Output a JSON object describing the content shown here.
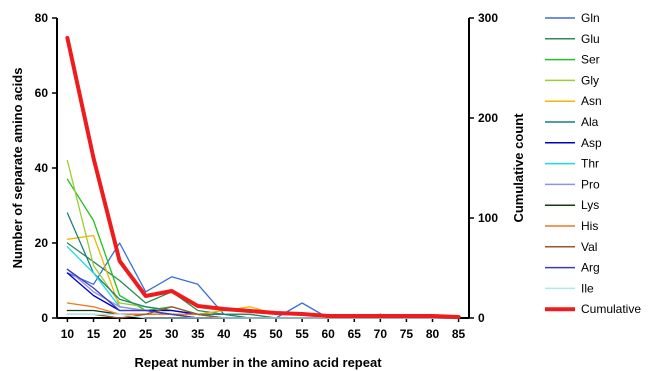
{
  "chart_data": {
    "type": "line",
    "xlabel": "Repeat number in the amino acid repeat",
    "ylabel_left": "Number of separate amino acids",
    "ylabel_right": "Cumulative count",
    "x": [
      10,
      15,
      20,
      25,
      30,
      35,
      40,
      45,
      50,
      55,
      60,
      65,
      70,
      75,
      80,
      85
    ],
    "x_ticks": [
      "10",
      "15",
      "20",
      "25",
      "30",
      "35",
      "40",
      "45",
      "50",
      "55",
      "60",
      "65",
      "70",
      "75",
      "80",
      "85"
    ],
    "y_left_ticks": [
      "0",
      "20",
      "40",
      "60",
      "80"
    ],
    "y_right_ticks": [
      "0",
      "100",
      "200",
      "300"
    ],
    "ylim_left": [
      0,
      80
    ],
    "ylim_right": [
      0,
      300
    ],
    "grid": false,
    "legend_position": "right",
    "series": [
      {
        "name": "Gln",
        "color": "#3a6fd8",
        "axis": "left",
        "values": [
          12,
          9,
          20,
          7,
          11,
          9,
          1,
          1,
          0,
          4,
          0,
          0,
          1,
          0,
          0,
          0
        ]
      },
      {
        "name": "Glu",
        "color": "#2e8b57",
        "axis": "left",
        "values": [
          20,
          15,
          10,
          4,
          7,
          2,
          1,
          1,
          0,
          0,
          0,
          0,
          0,
          0,
          0,
          0
        ]
      },
      {
        "name": "Ser",
        "color": "#22c222",
        "axis": "left",
        "values": [
          37,
          26,
          6,
          2,
          3,
          1,
          0,
          0,
          0,
          0,
          0,
          0,
          0,
          0,
          0,
          0
        ]
      },
      {
        "name": "Gly",
        "color": "#9acd32",
        "axis": "left",
        "values": [
          42,
          14,
          4,
          3,
          2,
          1,
          0,
          0,
          0,
          0,
          0,
          0,
          0,
          0,
          0,
          0
        ]
      },
      {
        "name": "Asn",
        "color": "#f2b600",
        "axis": "left",
        "values": [
          21,
          22,
          3,
          2,
          2,
          1,
          2,
          3,
          1,
          1,
          0,
          0,
          0,
          0,
          0,
          0
        ]
      },
      {
        "name": "Ala",
        "color": "#1f7f7f",
        "axis": "left",
        "values": [
          28,
          12,
          5,
          3,
          2,
          1,
          1,
          0,
          0,
          0,
          0,
          0,
          0,
          0,
          0,
          0
        ]
      },
      {
        "name": "Asp",
        "color": "#0000cc",
        "axis": "left",
        "values": [
          12,
          6,
          2,
          2,
          2,
          1,
          0,
          0,
          0,
          0,
          0,
          0,
          0,
          0,
          0,
          0
        ]
      },
      {
        "name": "Thr",
        "color": "#22d8e0",
        "axis": "left",
        "values": [
          19,
          12,
          3,
          2,
          1,
          1,
          0,
          0,
          0,
          0,
          0,
          0,
          0,
          0,
          0,
          0
        ]
      },
      {
        "name": "Pro",
        "color": "#9090ee",
        "axis": "left",
        "values": [
          13,
          7,
          3,
          2,
          1,
          1,
          0,
          0,
          0,
          0,
          0,
          0,
          0,
          0,
          0,
          0
        ]
      },
      {
        "name": "Lys",
        "color": "#143d14",
        "axis": "left",
        "values": [
          2,
          2,
          1,
          1,
          1,
          0,
          0,
          0,
          0,
          0,
          0,
          0,
          0,
          0,
          0,
          0
        ]
      },
      {
        "name": "His",
        "color": "#f07820",
        "axis": "left",
        "values": [
          4,
          3,
          1,
          1,
          1,
          1,
          0,
          0,
          0,
          0,
          0,
          0,
          0,
          0,
          0,
          0
        ]
      },
      {
        "name": "Val",
        "color": "#a0522d",
        "axis": "left",
        "values": [
          1,
          1,
          0,
          1,
          3,
          1,
          0,
          0,
          0,
          0,
          0,
          0,
          0,
          0,
          0,
          0
        ]
      },
      {
        "name": "Arg",
        "color": "#3b3bb8",
        "axis": "left",
        "values": [
          13,
          8,
          2,
          2,
          1,
          0,
          0,
          0,
          0,
          0,
          0,
          0,
          0,
          0,
          0,
          0
        ]
      },
      {
        "name": "Ile",
        "color": "#b0e6f0",
        "axis": "left",
        "values": [
          1,
          1,
          1,
          0,
          0,
          0,
          0,
          0,
          0,
          0,
          0,
          0,
          0,
          0,
          0,
          0
        ]
      },
      {
        "name": "Cumulative",
        "color": "#ee1c1c",
        "axis": "right",
        "bold": true,
        "values": [
          280,
          160,
          57,
          22,
          27,
          12,
          9,
          7,
          5,
          4,
          2,
          2,
          2,
          2,
          2,
          1
        ]
      }
    ]
  }
}
